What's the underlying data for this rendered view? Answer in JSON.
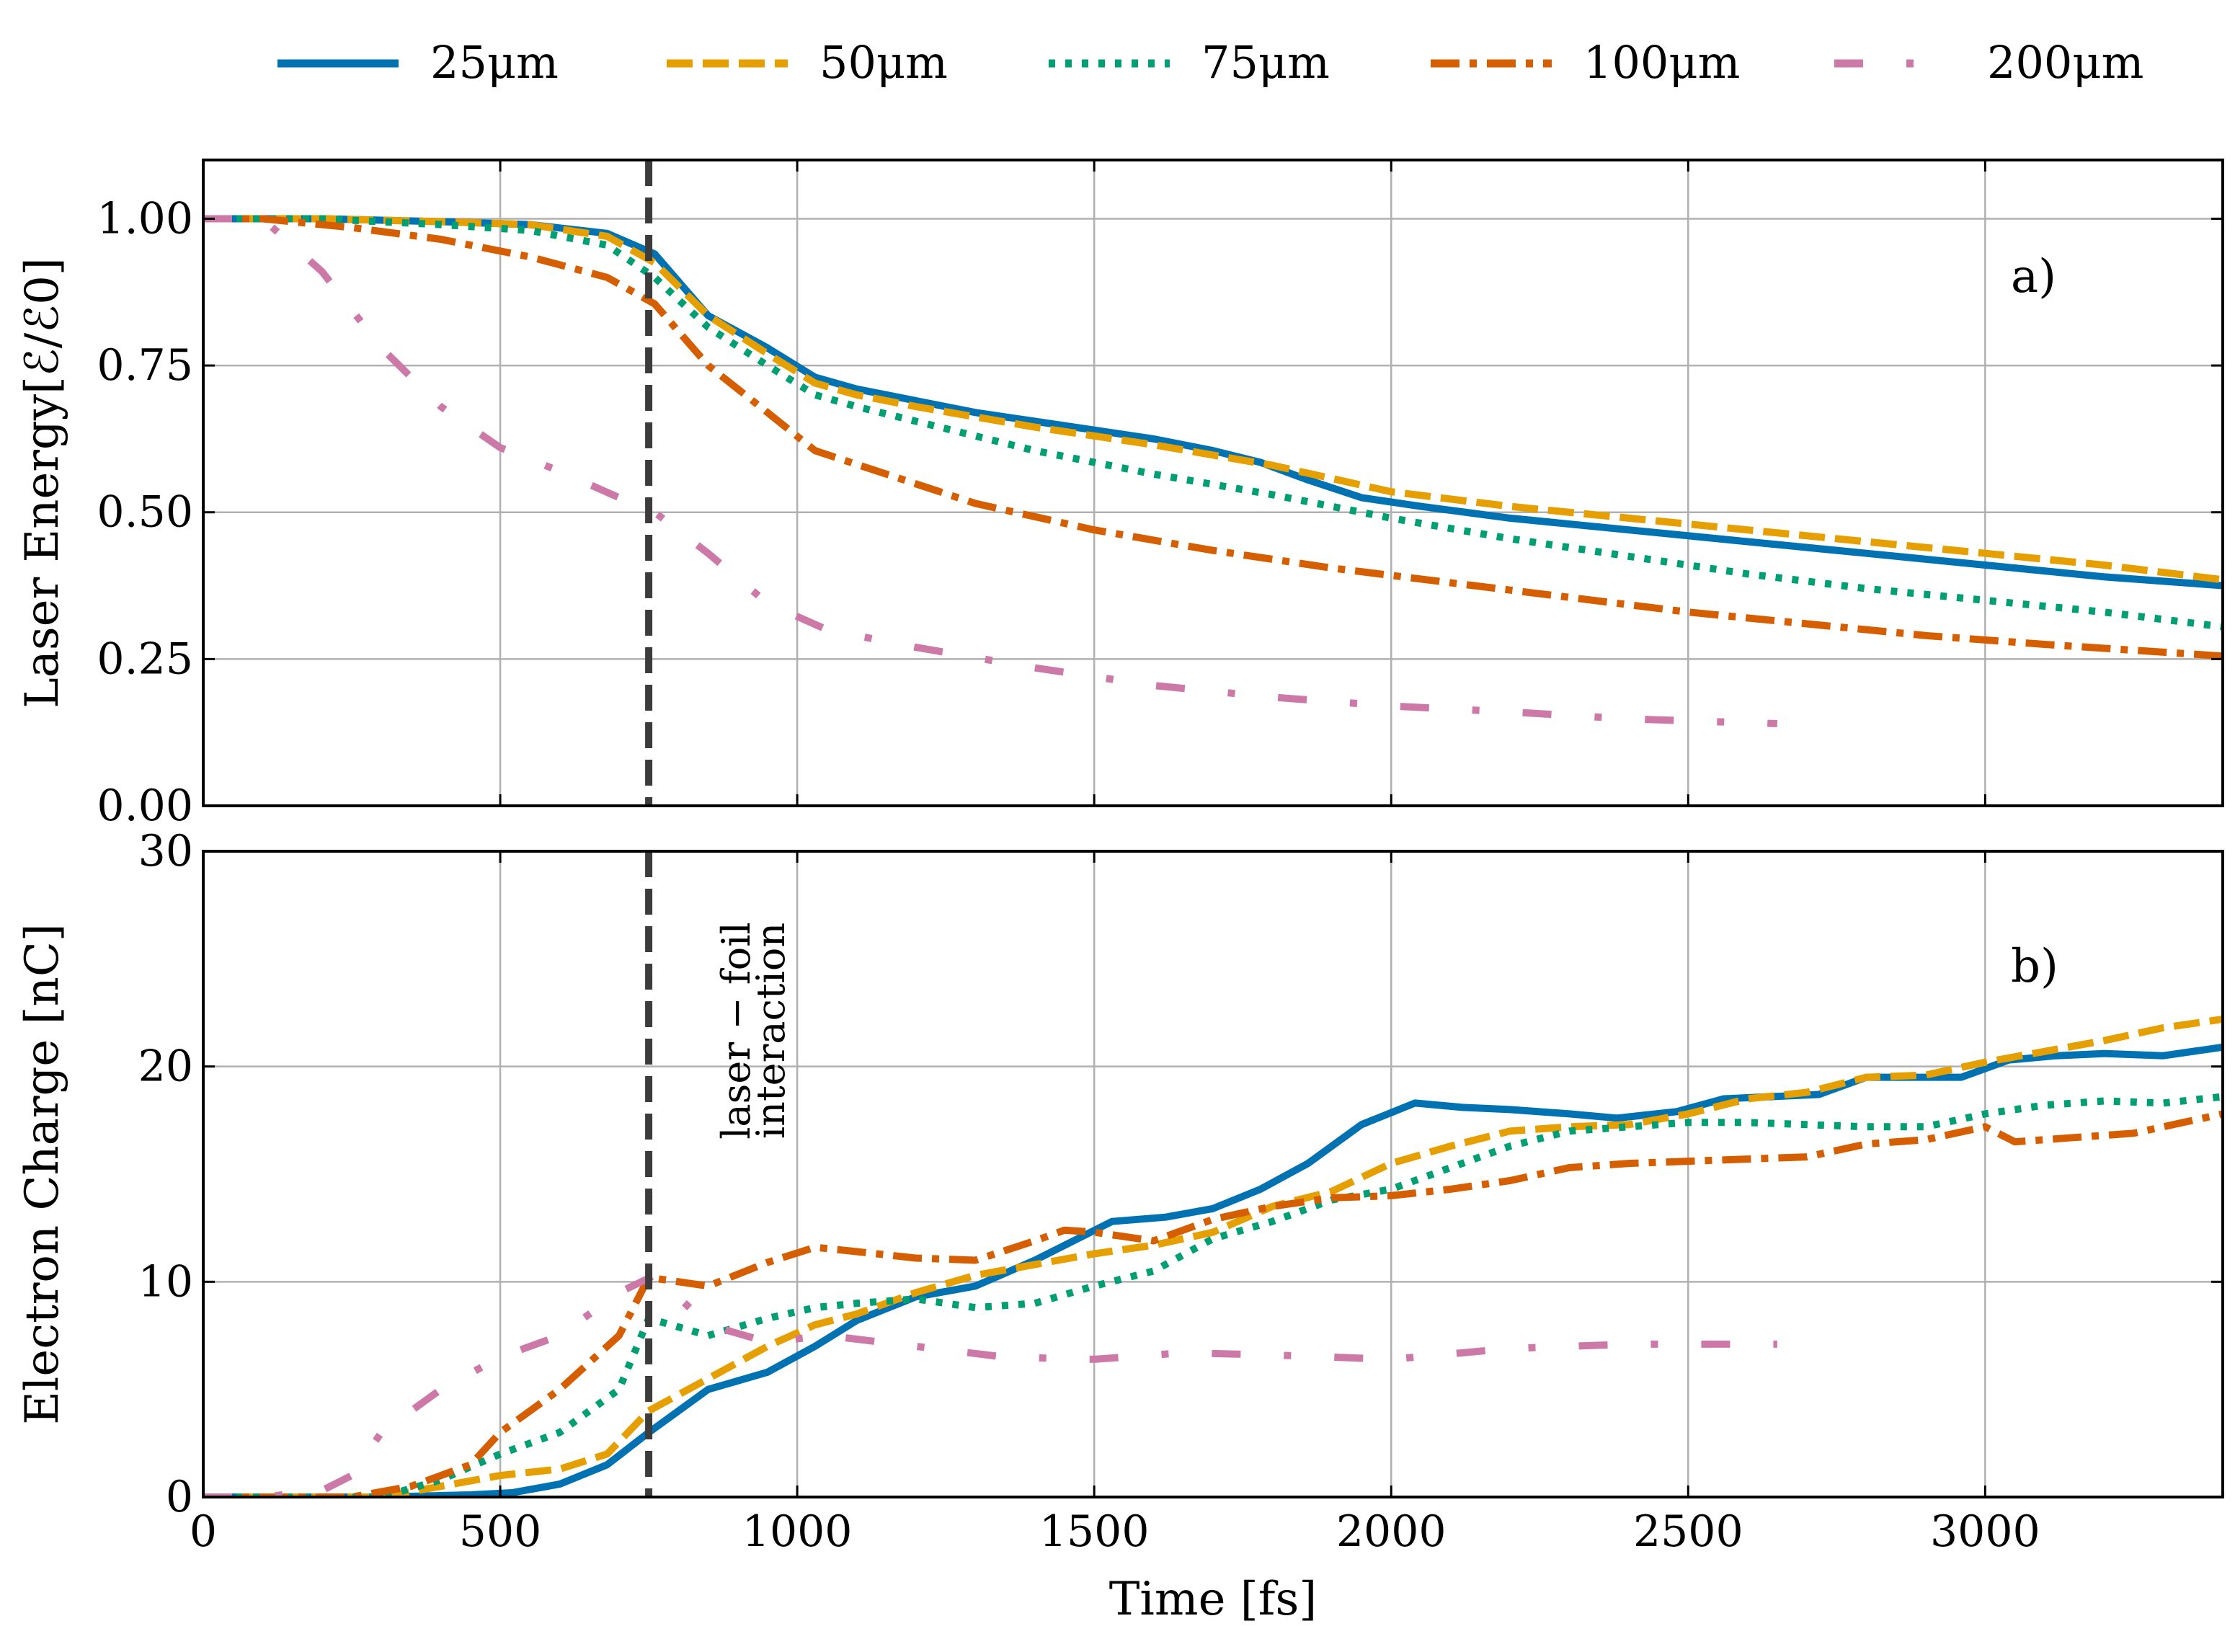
{
  "chart_data": {
    "type": "line",
    "legend": {
      "placement": "top-center",
      "entries": [
        {
          "label": "25μm",
          "color": "#0072b2",
          "style": "solid"
        },
        {
          "label": "50μm",
          "color": "#e69f00",
          "style": "dashed"
        },
        {
          "label": "75μm",
          "color": "#009e73",
          "style": "dotted"
        },
        {
          "label": "100μm",
          "color": "#d55e00",
          "style": "dashdot"
        },
        {
          "label": "200μm",
          "color": "#cc79a7",
          "style": "loose-dashdot"
        }
      ]
    },
    "xlabel": "Time [fs]",
    "xlim": [
      0,
      3400
    ],
    "xticks": [
      0,
      500,
      1000,
      1500,
      2000,
      2500,
      3000
    ],
    "xtick_labels": [
      "0",
      "500",
      "1000",
      "1500",
      "2000",
      "2500",
      "3000"
    ],
    "grid": true,
    "vline": {
      "x": 750,
      "label_line1": "laser − foil",
      "label_line2": "interaction",
      "color": "#3c3c3c",
      "style": "dashed"
    },
    "panels": [
      {
        "tag": "a)",
        "ylabel": "Laser Energy[ℰ/ℰ0]",
        "ylim": [
          0,
          1.1
        ],
        "yticks": [
          0,
          0.25,
          0.5,
          0.75,
          1.0
        ],
        "ytick_labels": [
          "0.00",
          "0.25",
          "0.50",
          "0.75",
          "1.00"
        ],
        "series": [
          {
            "name": "25μm",
            "x": [
              0,
              200,
              400,
              550,
              680,
              760,
              850,
              950,
              1030,
              1100,
              1200,
              1300,
              1400,
              1500,
              1600,
              1700,
              1780,
              1860,
              1950,
              2050,
              2200,
              2400,
              2600,
              2800,
              3000,
              3200,
              3400
            ],
            "y": [
              1.0,
              1.0,
              0.995,
              0.99,
              0.975,
              0.94,
              0.835,
              0.78,
              0.73,
              0.71,
              0.69,
              0.67,
              0.655,
              0.64,
              0.625,
              0.605,
              0.585,
              0.555,
              0.525,
              0.51,
              0.49,
              0.47,
              0.45,
              0.43,
              0.41,
              0.39,
              0.375
            ]
          },
          {
            "name": "50μm",
            "x": [
              0,
              200,
              400,
              550,
              680,
              760,
              850,
              950,
              1030,
              1100,
              1200,
              1400,
              1600,
              1800,
              2000,
              2200,
              2400,
              2600,
              2800,
              3000,
              3200,
              3400
            ],
            "y": [
              1.0,
              1.0,
              0.995,
              0.99,
              0.97,
              0.925,
              0.835,
              0.77,
              0.72,
              0.7,
              0.68,
              0.645,
              0.615,
              0.58,
              0.535,
              0.51,
              0.49,
              0.47,
              0.45,
              0.43,
              0.41,
              0.385
            ]
          },
          {
            "name": "75μm",
            "x": [
              0,
              200,
              400,
              550,
              680,
              760,
              850,
              950,
              1030,
              1100,
              1200,
              1400,
              1600,
              1800,
              2000,
              2200,
              2400,
              2600,
              2800,
              3000,
              3200,
              3400
            ],
            "y": [
              1.0,
              1.0,
              0.99,
              0.98,
              0.955,
              0.9,
              0.815,
              0.75,
              0.7,
              0.68,
              0.655,
              0.605,
              0.565,
              0.53,
              0.49,
              0.455,
              0.425,
              0.395,
              0.37,
              0.35,
              0.33,
              0.305
            ]
          },
          {
            "name": "100μm",
            "x": [
              0,
              100,
              250,
              400,
              550,
              680,
              760,
              850,
              950,
              1030,
              1150,
              1300,
              1500,
              1700,
              1900,
              2100,
              2300,
              2500,
              2700,
              2900,
              3100,
              3400
            ],
            "y": [
              1.0,
              1.0,
              0.985,
              0.965,
              0.935,
              0.9,
              0.855,
              0.75,
              0.67,
              0.605,
              0.565,
              0.515,
              0.47,
              0.435,
              0.405,
              0.38,
              0.355,
              0.33,
              0.31,
              0.29,
              0.275,
              0.255
            ]
          },
          {
            "name": "200μm",
            "x": [
              0,
              100,
              200,
              300,
              400,
              500,
              600,
              700,
              760,
              850,
              950,
              1050,
              1200,
              1400,
              1600,
              1800,
              2000,
              2200,
              2400,
              2650
            ],
            "y": [
              1.0,
              1.0,
              0.91,
              0.78,
              0.68,
              0.61,
              0.57,
              0.525,
              0.5,
              0.43,
              0.345,
              0.3,
              0.27,
              0.235,
              0.205,
              0.185,
              0.17,
              0.16,
              0.148,
              0.14
            ]
          }
        ]
      },
      {
        "tag": "b)",
        "ylabel": "Electron Charge [nC]",
        "ylim": [
          0,
          30
        ],
        "yticks": [
          0,
          10,
          20,
          30
        ],
        "ytick_labels": [
          "0",
          "10",
          "20",
          "30"
        ],
        "series": [
          {
            "name": "25μm",
            "x": [
              0,
              300,
              450,
              520,
              600,
              680,
              750,
              850,
              950,
              1030,
              1100,
              1200,
              1300,
              1400,
              1530,
              1620,
              1700,
              1780,
              1860,
              1950,
              2040,
              2120,
              2200,
              2300,
              2380,
              2480,
              2560,
              2640,
              2720,
              2800,
              2880,
              2960,
              3040,
              3120,
              3200,
              3300,
              3400
            ],
            "y": [
              0,
              0,
              0.1,
              0.2,
              0.6,
              1.5,
              3.0,
              5.0,
              5.8,
              7.0,
              8.2,
              9.3,
              9.8,
              11.0,
              12.8,
              13.0,
              13.4,
              14.3,
              15.5,
              17.3,
              18.3,
              18.1,
              18.0,
              17.8,
              17.6,
              17.9,
              18.5,
              18.6,
              18.7,
              19.5,
              19.5,
              19.5,
              20.3,
              20.5,
              20.6,
              20.5,
              20.9
            ]
          },
          {
            "name": "50μm",
            "x": [
              0,
              300,
              400,
              500,
              600,
              680,
              750,
              850,
              950,
              1030,
              1100,
              1200,
              1300,
              1400,
              1500,
              1600,
              1700,
              1800,
              1900,
              2000,
              2100,
              2200,
              2300,
              2400,
              2500,
              2600,
              2700,
              2800,
              2900,
              3000,
              3100,
              3200,
              3300,
              3400
            ],
            "y": [
              0,
              0,
              0.5,
              1.0,
              1.3,
              2.0,
              4.0,
              5.5,
              7.0,
              8.0,
              8.5,
              9.5,
              10.3,
              10.8,
              11.3,
              11.7,
              12.3,
              13.5,
              14.2,
              15.5,
              16.3,
              17.0,
              17.2,
              17.3,
              17.8,
              18.5,
              18.8,
              19.5,
              19.6,
              20.2,
              20.7,
              21.2,
              21.8,
              22.2
            ]
          },
          {
            "name": "75μm",
            "x": [
              0,
              300,
              400,
              500,
              600,
              700,
              750,
              850,
              950,
              1030,
              1100,
              1200,
              1300,
              1400,
              1500,
              1600,
              1700,
              1800,
              1900,
              2000,
              2100,
              2200,
              2300,
              2400,
              2500,
              2600,
              2700,
              2800,
              2900,
              3000,
              3100,
              3200,
              3300,
              3400
            ],
            "y": [
              0,
              0,
              0.8,
              2.0,
              3.0,
              5.0,
              8.3,
              7.5,
              8.3,
              8.8,
              9.0,
              9.2,
              8.8,
              9.0,
              9.8,
              10.5,
              12.0,
              12.8,
              13.8,
              14.3,
              15.3,
              16.3,
              17.0,
              17.2,
              17.4,
              17.4,
              17.3,
              17.2,
              17.2,
              17.8,
              18.2,
              18.4,
              18.3,
              18.6
            ]
          },
          {
            "name": "100μm",
            "x": [
              0,
              250,
              350,
              450,
              500,
              600,
              700,
              750,
              850,
              950,
              1030,
              1100,
              1200,
              1300,
              1400,
              1450,
              1500,
              1600,
              1700,
              1800,
              1900,
              2000,
              2100,
              2200,
              2300,
              2400,
              2500,
              2600,
              2700,
              2800,
              2900,
              3000,
              3050,
              3150,
              3250,
              3400
            ],
            "y": [
              0,
              0,
              0.5,
              1.5,
              3.0,
              5.0,
              7.5,
              10.2,
              9.8,
              10.9,
              11.6,
              11.4,
              11.1,
              11.0,
              11.9,
              12.4,
              12.3,
              11.9,
              12.9,
              13.5,
              13.9,
              14.0,
              14.3,
              14.7,
              15.3,
              15.5,
              15.6,
              15.7,
              15.8,
              16.4,
              16.6,
              17.2,
              16.5,
              16.7,
              16.9,
              17.8
            ]
          },
          {
            "name": "200μm",
            "x": [
              0,
              100,
              200,
              250,
              300,
              400,
              500,
              600,
              700,
              760,
              850,
              950,
              1050,
              1200,
              1350,
              1500,
              1650,
              1800,
              2000,
              2200,
              2400,
              2650
            ],
            "y": [
              0,
              0,
              0.3,
              1.0,
              3.0,
              5.0,
              6.5,
              7.5,
              9.5,
              10.3,
              8.0,
              7.2,
              7.5,
              7.0,
              6.5,
              6.4,
              6.7,
              6.6,
              6.4,
              6.9,
              7.1,
              7.1
            ]
          }
        ]
      }
    ]
  }
}
